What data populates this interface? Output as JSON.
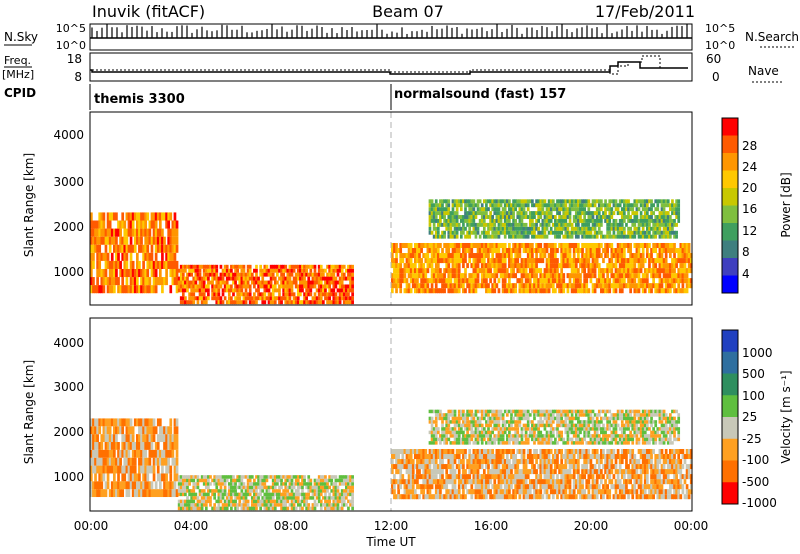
{
  "header": {
    "station": "Inuvik (fitACF)",
    "beam": "Beam 07",
    "date": "17/Feb/2011"
  },
  "noise_panel": {
    "left_label": "N.Sky",
    "right_label": "N.Search",
    "ticks_left": [
      "10^5",
      "10^0"
    ],
    "ticks_right": [
      "10^5",
      "10^0"
    ]
  },
  "freq_panel": {
    "left_label": "Freq.",
    "left_unit": "[MHz]",
    "right_label": "Nave",
    "ticks_left": [
      "18",
      "8"
    ],
    "ticks_right": [
      "60",
      "0"
    ]
  },
  "cpid": {
    "label": "CPID",
    "segments": [
      {
        "name": "themis 3300",
        "start_hour": 0,
        "end_hour": 12
      },
      {
        "name": "normalsound (fast) 157",
        "start_hour": 12,
        "end_hour": 24
      }
    ]
  },
  "axes": {
    "ylabel": "Slant Range [km]",
    "xlabel": "Time UT",
    "yticks": [
      "4000",
      "3000",
      "2000",
      "1000"
    ],
    "xticks": [
      "00:00",
      "04:00",
      "08:00",
      "12:00",
      "16:00",
      "20:00",
      "00:00"
    ]
  },
  "power_scale": {
    "label": "Power [dB]",
    "ticks": [
      "28",
      "24",
      "20",
      "16",
      "12",
      "8",
      "4"
    ],
    "colors": [
      "#ff0000",
      "#ff5a00",
      "#ff9600",
      "#ffc800",
      "#c8c800",
      "#7fbf3f",
      "#3f9f5f",
      "#3f7f7f",
      "#3f3fbf",
      "#0000ff"
    ]
  },
  "velocity_scale": {
    "label": "Velocity [m s⁻¹]",
    "ticks": [
      "1000",
      "500",
      "100",
      "25",
      "-25",
      "-100",
      "-500",
      "-1000"
    ],
    "colors": [
      "#2040c0",
      "#2f6f9f",
      "#2f8f5f",
      "#5fbf3f",
      "#c8c8b8",
      "#ffa020",
      "#ff7000",
      "#ff0000"
    ]
  },
  "chart_data": [
    {
      "type": "heatmap",
      "title": "Power",
      "xlabel": "Time UT",
      "ylabel": "Slant Range [km]",
      "x_range_hours": [
        0,
        24
      ],
      "ylim": [
        180,
        4600
      ],
      "colorbar": {
        "label": "Power [dB]",
        "range": [
          0,
          30
        ]
      },
      "echo_regions": [
        {
          "t_start": 0.0,
          "t_end": 3.5,
          "r_low": 450,
          "r_high": 2300,
          "power": 25
        },
        {
          "t_start": 3.5,
          "t_end": 10.5,
          "r_low": 200,
          "r_high": 1100,
          "power": 26
        },
        {
          "t_start": 12.0,
          "t_end": 24.0,
          "r_low": 450,
          "r_high": 1600,
          "power": 24
        },
        {
          "t_start": 13.5,
          "t_end": 23.5,
          "r_low": 1700,
          "r_high": 2600,
          "power": 14
        }
      ]
    },
    {
      "type": "heatmap",
      "title": "Velocity",
      "xlabel": "Time UT",
      "ylabel": "Slant Range [km]",
      "x_range_hours": [
        0,
        24
      ],
      "ylim": [
        180,
        4600
      ],
      "colorbar": {
        "label": "Velocity [m s⁻¹]",
        "range": [
          -1000,
          1000
        ]
      },
      "echo_regions": [
        {
          "t_start": 0.0,
          "t_end": 3.5,
          "r_low": 500,
          "r_high": 2300,
          "velocity": -150
        },
        {
          "t_start": 3.5,
          "t_end": 10.5,
          "r_low": 200,
          "r_high": 1000,
          "velocity": 40
        },
        {
          "t_start": 12.0,
          "t_end": 24.0,
          "r_low": 450,
          "r_high": 1600,
          "velocity": -150
        },
        {
          "t_start": 13.5,
          "t_end": 23.5,
          "r_low": 1700,
          "r_high": 2500,
          "velocity": 0
        }
      ]
    }
  ]
}
